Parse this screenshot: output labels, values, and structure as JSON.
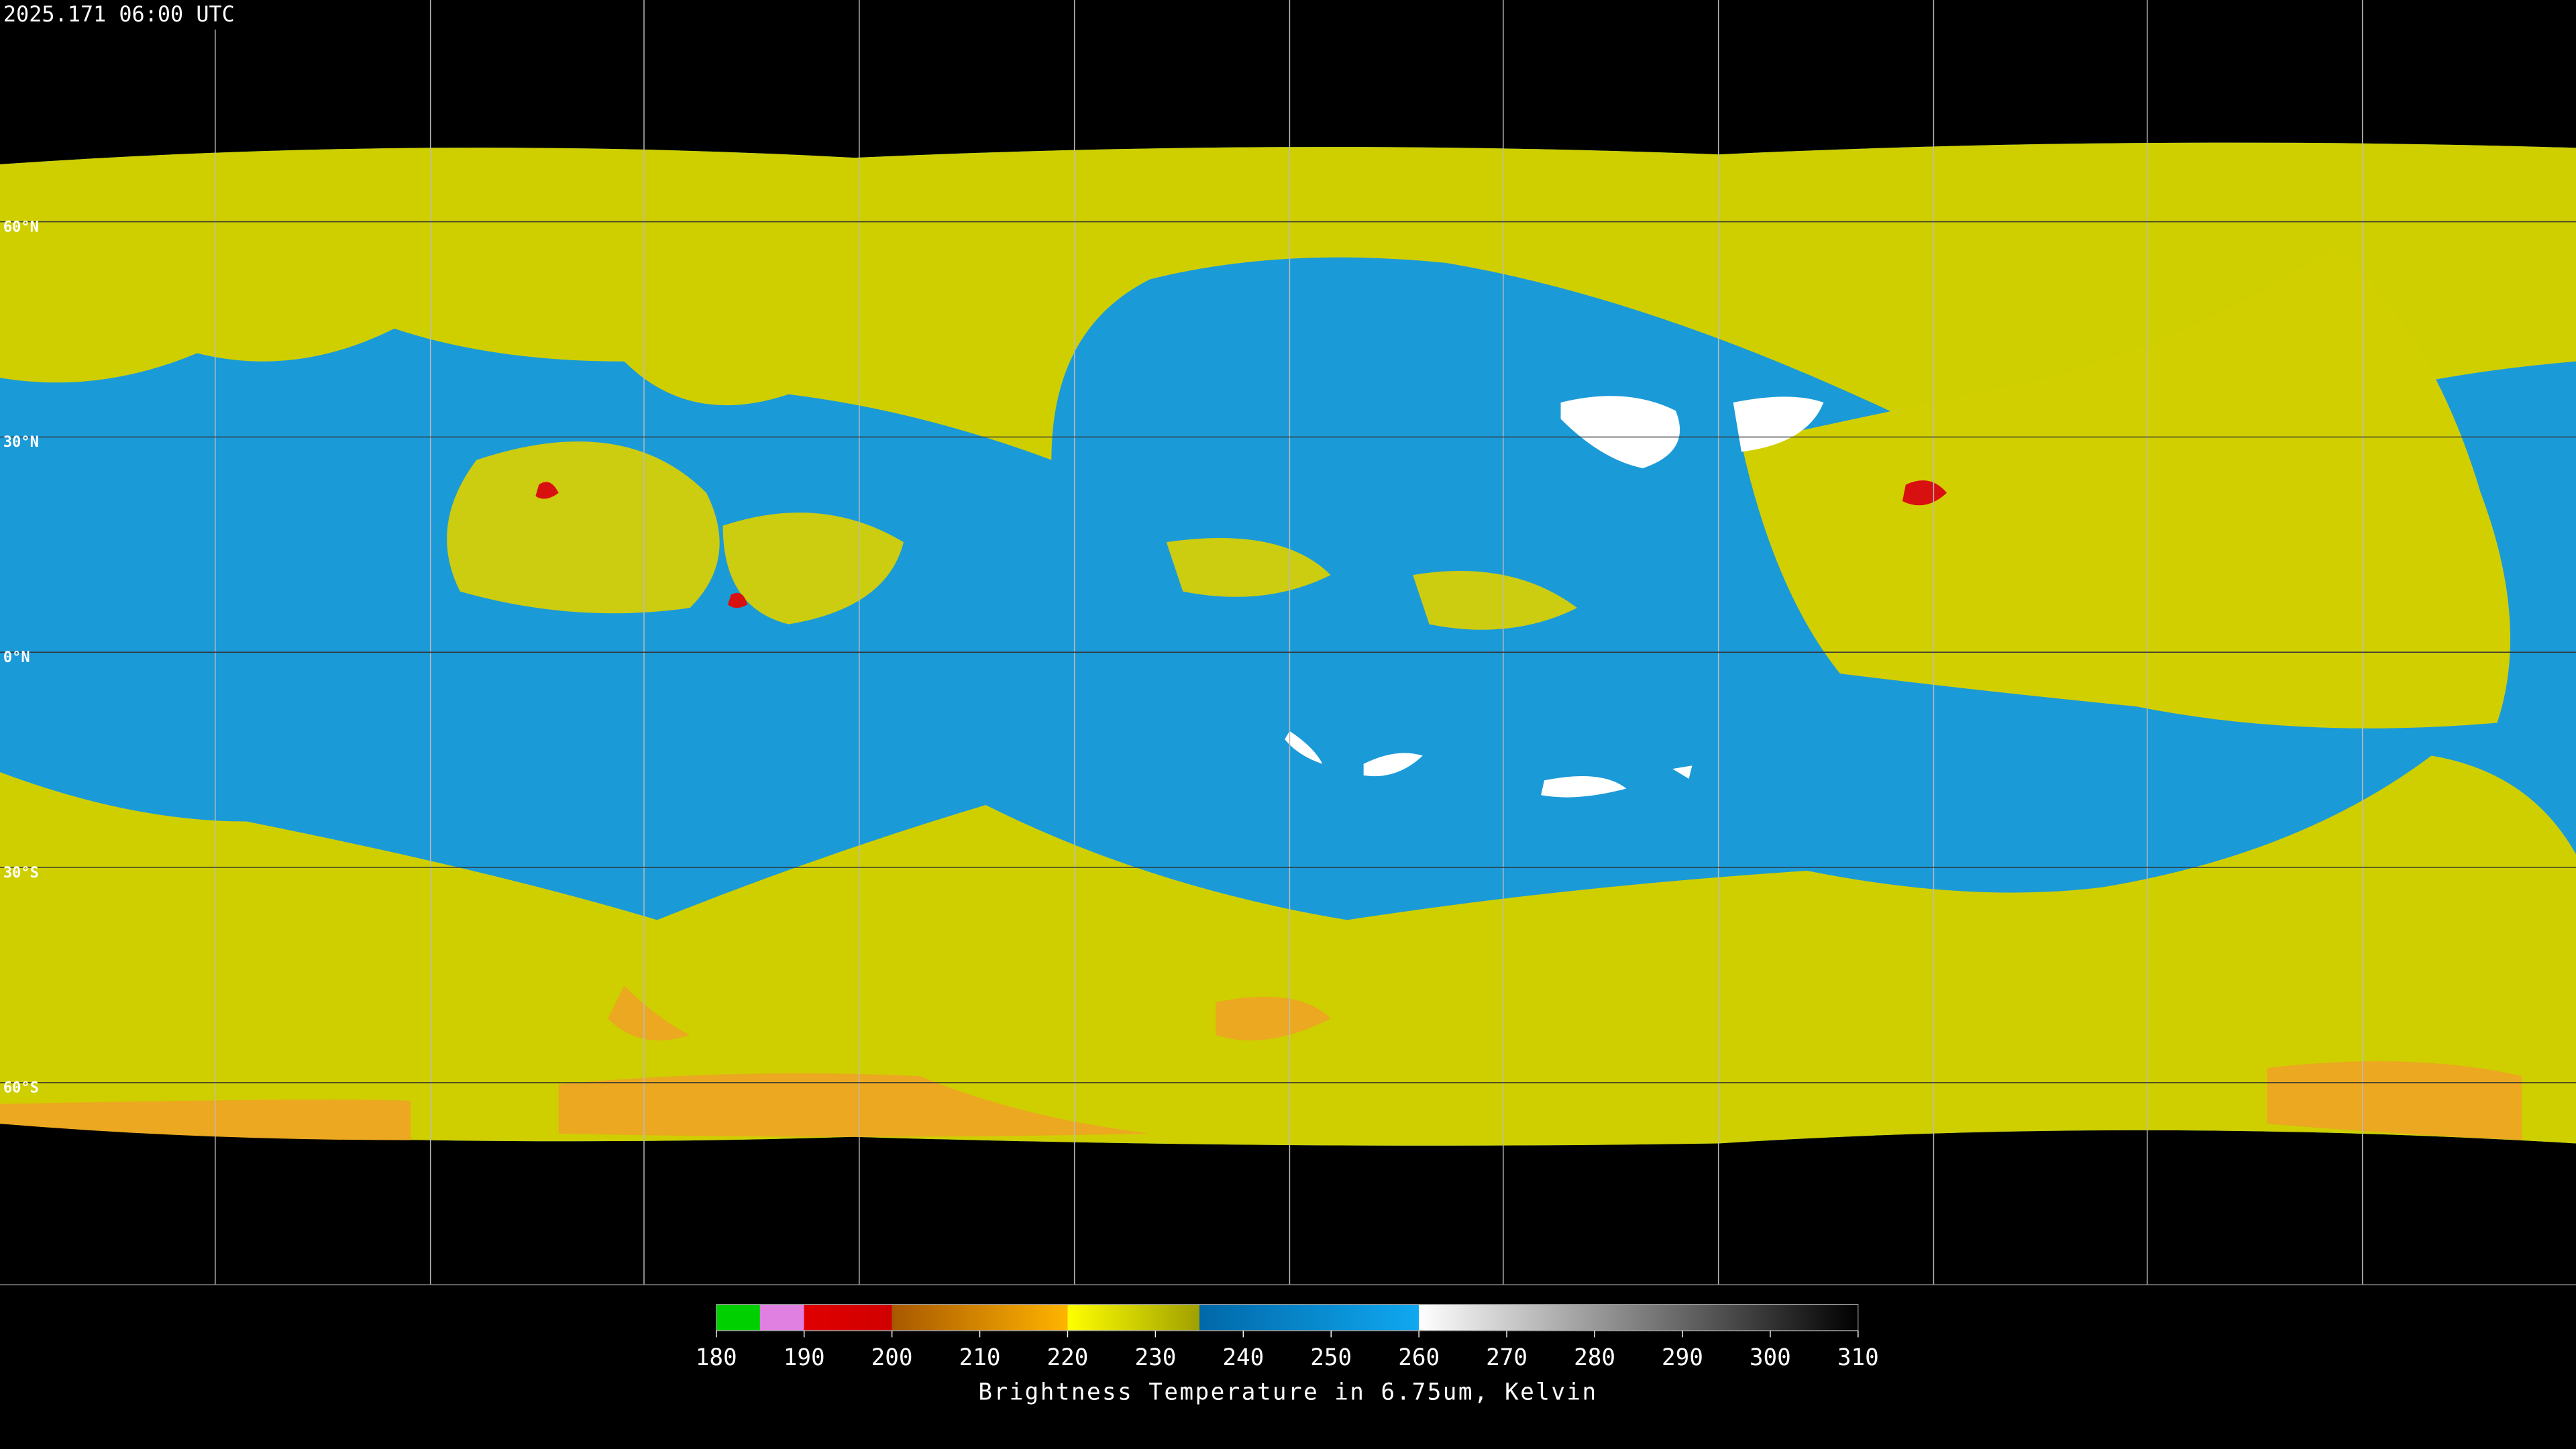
{
  "header": {
    "timestamp": "2025.171 06:00 UTC"
  },
  "latitude_labels": [
    "60°N",
    "30°N",
    "0°N",
    "30°S",
    "60°S"
  ],
  "colorbar": {
    "label": "Brightness Temperature in 6.75um, Kelvin",
    "range": [
      180,
      310
    ],
    "ticks": [
      180,
      190,
      200,
      210,
      220,
      230,
      240,
      250,
      260,
      270,
      280,
      290,
      300,
      310
    ],
    "stops": [
      {
        "value": 180,
        "color": "#00d000"
      },
      {
        "value": 185,
        "color": "#00d000"
      },
      {
        "value": 185,
        "color": "#e080e0"
      },
      {
        "value": 190,
        "color": "#e080e0"
      },
      {
        "value": 190,
        "color": "#e00000"
      },
      {
        "value": 200,
        "color": "#d00000"
      },
      {
        "value": 200,
        "color": "#a85800"
      },
      {
        "value": 220,
        "color": "#ffb400"
      },
      {
        "value": 220,
        "color": "#ffff00"
      },
      {
        "value": 235,
        "color": "#a0a000"
      },
      {
        "value": 235,
        "color": "#0068a8"
      },
      {
        "value": 260,
        "color": "#10a8f0"
      },
      {
        "value": 260,
        "color": "#ffffff"
      },
      {
        "value": 310,
        "color": "#000000"
      }
    ]
  }
}
